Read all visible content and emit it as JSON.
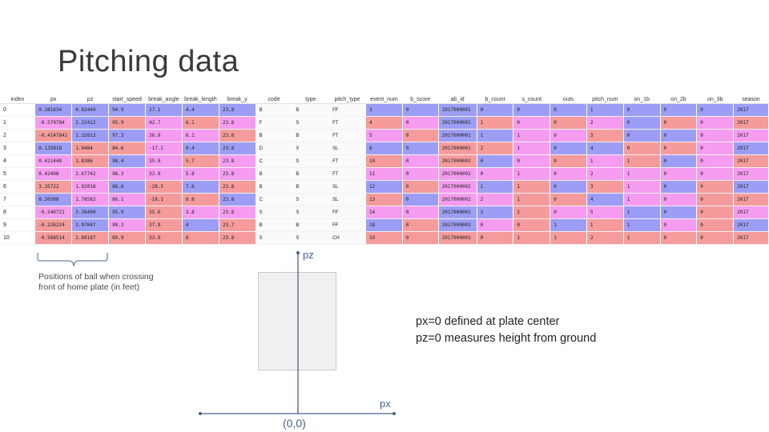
{
  "slide": {
    "title": "Pitching data"
  },
  "table": {
    "columns": [
      "index",
      "px",
      "pz",
      "start_speed",
      "break_angle",
      "break_length",
      "break_y",
      "code",
      "type",
      "pitch_type",
      "event_num",
      "b_score",
      "ab_id",
      "b_count",
      "s_count",
      "outs",
      "pitch_num",
      "on_1b",
      "on_2b",
      "on_3b",
      "season"
    ],
    "rows": [
      [
        "0",
        "0.281634",
        "4.83449",
        "94.9",
        "27.1",
        "4.4",
        "23.8",
        "B",
        "B",
        "FF",
        "3",
        "0",
        "2017000001",
        "0",
        "0",
        "0",
        "1",
        "0",
        "0",
        "0",
        "2017"
      ],
      [
        "1",
        "-0.579784",
        "2.32412",
        "95.9",
        "42.7",
        "6.1",
        "23.8",
        "F",
        "S",
        "FT",
        "4",
        "0",
        "2017000001",
        "1",
        "0",
        "0",
        "2",
        "0",
        "0",
        "0",
        "2017"
      ],
      [
        "2",
        "-0.4147842",
        "1.32812",
        "97.3",
        "36.9",
        "6.1",
        "23.8",
        "B",
        "B",
        "FT",
        "5",
        "0",
        "2017000001",
        "1",
        "1",
        "0",
        "3",
        "0",
        "0",
        "0",
        "2017"
      ],
      [
        "3",
        "0.135818",
        "1.9484",
        "84.6",
        "-17.2",
        "9.4",
        "23.8",
        "D",
        "X",
        "SL",
        "6",
        "0",
        "2017000001",
        "2",
        "1",
        "0",
        "4",
        "0",
        "0",
        "0",
        "2017"
      ],
      [
        "4",
        "0.421448",
        "1.8386",
        "98.4",
        "35.9",
        "5.7",
        "23.8",
        "C",
        "S",
        "FT",
        "10",
        "0",
        "2017000002",
        "0",
        "0",
        "0",
        "1",
        "1",
        "0",
        "0",
        "2017"
      ],
      [
        "5",
        "0.42498",
        "2.67742",
        "96.3",
        "32.9",
        "5.8",
        "23.8",
        "B",
        "B",
        "FT",
        "11",
        "0",
        "2017000002",
        "0",
        "1",
        "0",
        "2",
        "1",
        "0",
        "0",
        "2017"
      ],
      [
        "6",
        "3.35722",
        "1.92018",
        "86.6",
        "-28.5",
        "7.6",
        "23.8",
        "B",
        "B",
        "SL",
        "12",
        "0",
        "2017000002",
        "1",
        "1",
        "0",
        "3",
        "1",
        "0",
        "0",
        "2017"
      ],
      [
        "7",
        "0.20308",
        "1.78582",
        "86.1",
        "-18.1",
        "8.8",
        "23.8",
        "C",
        "S",
        "SL",
        "13",
        "0",
        "2017000002",
        "2",
        "1",
        "0",
        "4",
        "1",
        "0",
        "0",
        "2017"
      ],
      [
        "8",
        "-0.540721",
        "3.38409",
        "95.9",
        "35.6",
        "3.8",
        "23.8",
        "S",
        "S",
        "FF",
        "14",
        "0",
        "2017000002",
        "2",
        "2",
        "0",
        "5",
        "1",
        "0",
        "0",
        "2017"
      ],
      [
        "9",
        "-0.226224",
        "3.97047",
        "99.3",
        "37.9",
        "4",
        "23.7",
        "B",
        "B",
        "FF",
        "18",
        "0",
        "2017000003",
        "0",
        "0",
        "1",
        "1",
        "1",
        "0",
        "0",
        "2017"
      ],
      [
        "10",
        "-0.588514",
        "2.89187",
        "89.9",
        "33.9",
        "8",
        "23.8",
        "S",
        "S",
        "CH",
        "19",
        "0",
        "2017000003",
        "0",
        "1",
        "1",
        "2",
        "1",
        "0",
        "0",
        "2017"
      ]
    ]
  },
  "colors": {
    "blue": "#9d9df5",
    "red": "#f59b9b",
    "pink": "#f59cf0",
    "axis": "#4a5f8a",
    "text": "#3a3a3a"
  },
  "annotation": {
    "caption_line1": "Positions of ball when crossing",
    "caption_line2": "front of home plate (in feet)"
  },
  "diagram": {
    "pz_label": "pz",
    "px_label": "px",
    "origin_label": "(0,0)",
    "note_line1": "px=0 defined at plate center",
    "note_line2": "pz=0 measures height from ground"
  }
}
